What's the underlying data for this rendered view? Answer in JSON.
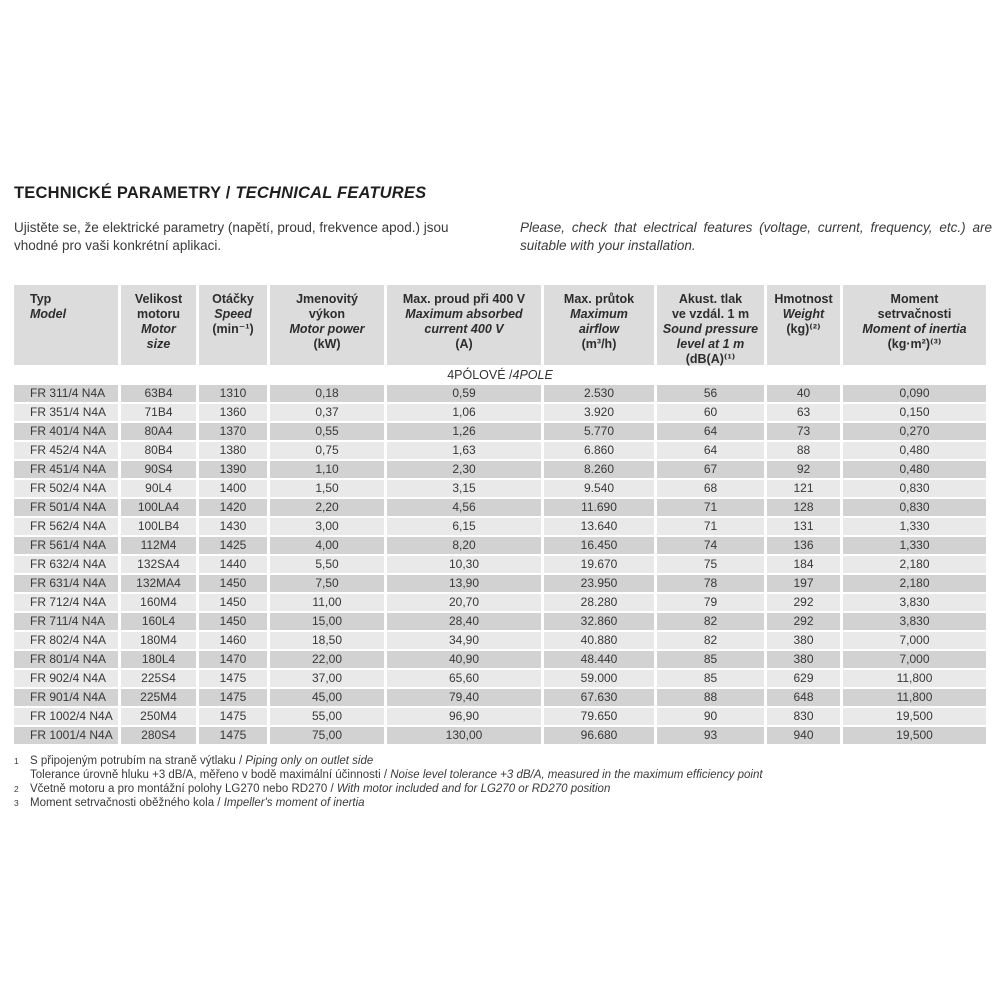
{
  "colors": {
    "header_bg": "#dcdcdc",
    "row_dark": "#d2d2d2",
    "row_light": "#e9e9e9",
    "text": "#3a3a3a"
  },
  "page": {
    "title": {
      "cs": "TECHNICKÉ PARAMETRY",
      "sep": " / ",
      "en": "TECHNICAL FEATURES"
    },
    "intro": {
      "czech": "Ujistěte se, že elektrické parametry (napětí, proud, frekvence apod.) jsou vhodné pro vaši konkrétní aplikaci.",
      "english": "Please, check that electrical features (voltage, current, frequency, etc.) are suitable with your installation."
    }
  },
  "table": {
    "section_label": {
      "cs": "4PÓLOVÉ",
      "sep": " / ",
      "en": "4POLE"
    },
    "columns": [
      {
        "key": "model",
        "align": "left",
        "lines": [
          {
            "t": "Typ",
            "s": "b"
          },
          {
            "t": "Model",
            "s": "bi"
          }
        ]
      },
      {
        "key": "motor-size",
        "lines": [
          {
            "t": "Velikost",
            "s": "b"
          },
          {
            "t": "motoru",
            "s": "b"
          },
          {
            "t": "Motor",
            "s": "bi"
          },
          {
            "t": "size",
            "s": "bi"
          }
        ]
      },
      {
        "key": "speed",
        "lines": [
          {
            "t": "Otáčky",
            "s": "b"
          },
          {
            "t": "Speed",
            "s": "bi"
          },
          {
            "t": "(min⁻¹)",
            "s": "b"
          }
        ]
      },
      {
        "key": "motor-power",
        "lines": [
          {
            "t": "Jmenovitý",
            "s": "b"
          },
          {
            "t": "výkon",
            "s": "b"
          },
          {
            "t": "Motor power",
            "s": "bi"
          },
          {
            "t": "(kW)",
            "s": "b"
          }
        ]
      },
      {
        "key": "max-current",
        "lines": [
          {
            "t": "Max. proud při 400 V",
            "s": "b"
          },
          {
            "t": "Maximum absorbed",
            "s": "bi"
          },
          {
            "t": "current 400 V",
            "s": "bi"
          },
          {
            "t": "(A)",
            "s": "b"
          }
        ]
      },
      {
        "key": "max-airflow",
        "lines": [
          {
            "t": "Max. průtok",
            "s": "b"
          },
          {
            "t": "Maximum",
            "s": "bi"
          },
          {
            "t": "airflow",
            "s": "bi"
          },
          {
            "t": "(m³/h)",
            "s": "b"
          }
        ]
      },
      {
        "key": "sound-pressure",
        "lines": [
          {
            "t": "Akust. tlak",
            "s": "b"
          },
          {
            "t": "ve vzdál. 1 m",
            "s": "b"
          },
          {
            "t": "Sound pressure",
            "s": "bi"
          },
          {
            "t": "level at 1 m",
            "s": "bi"
          },
          {
            "t": "(dB(A)⁽¹⁾",
            "s": "b"
          }
        ]
      },
      {
        "key": "weight",
        "lines": [
          {
            "t": "Hmotnost",
            "s": "b"
          },
          {
            "t": "Weight",
            "s": "bi"
          },
          {
            "t": "(kg)⁽²⁾",
            "s": "b"
          }
        ]
      },
      {
        "key": "moment-of-inertia",
        "lines": [
          {
            "t": "Moment",
            "s": "b"
          },
          {
            "t": "setrvačnosti",
            "s": "b"
          },
          {
            "t": "Moment of inertia",
            "s": "bi"
          },
          {
            "t": "(kg·m²)⁽³⁾",
            "s": "b"
          }
        ]
      }
    ],
    "rows": [
      [
        "FR 311/4 N4A",
        "63B4",
        "1310",
        "0,18",
        "0,59",
        "2.530",
        "56",
        "40",
        "0,090"
      ],
      [
        "FR 351/4 N4A",
        "71B4",
        "1360",
        "0,37",
        "1,06",
        "3.920",
        "60",
        "63",
        "0,150"
      ],
      [
        "FR 401/4 N4A",
        "80A4",
        "1370",
        "0,55",
        "1,26",
        "5.770",
        "64",
        "73",
        "0,270"
      ],
      [
        "FR 452/4 N4A",
        "80B4",
        "1380",
        "0,75",
        "1,63",
        "6.860",
        "64",
        "88",
        "0,480"
      ],
      [
        "FR 451/4 N4A",
        "90S4",
        "1390",
        "1,10",
        "2,30",
        "8.260",
        "67",
        "92",
        "0,480"
      ],
      [
        "FR 502/4 N4A",
        "90L4",
        "1400",
        "1,50",
        "3,15",
        "9.540",
        "68",
        "121",
        "0,830"
      ],
      [
        "FR 501/4 N4A",
        "100LA4",
        "1420",
        "2,20",
        "4,56",
        "11.690",
        "71",
        "128",
        "0,830"
      ],
      [
        "FR 562/4 N4A",
        "100LB4",
        "1430",
        "3,00",
        "6,15",
        "13.640",
        "71",
        "131",
        "1,330"
      ],
      [
        "FR 561/4 N4A",
        "112M4",
        "1425",
        "4,00",
        "8,20",
        "16.450",
        "74",
        "136",
        "1,330"
      ],
      [
        "FR 632/4 N4A",
        "132SA4",
        "1440",
        "5,50",
        "10,30",
        "19.670",
        "75",
        "184",
        "2,180"
      ],
      [
        "FR 631/4 N4A",
        "132MA4",
        "1450",
        "7,50",
        "13,90",
        "23.950",
        "78",
        "197",
        "2,180"
      ],
      [
        "FR 712/4 N4A",
        "160M4",
        "1450",
        "11,00",
        "20,70",
        "28.280",
        "79",
        "292",
        "3,830"
      ],
      [
        "FR 711/4 N4A",
        "160L4",
        "1450",
        "15,00",
        "28,40",
        "32.860",
        "82",
        "292",
        "3,830"
      ],
      [
        "FR 802/4 N4A",
        "180M4",
        "1460",
        "18,50",
        "34,90",
        "40.880",
        "82",
        "380",
        "7,000"
      ],
      [
        "FR 801/4 N4A",
        "180L4",
        "1470",
        "22,00",
        "40,90",
        "48.440",
        "85",
        "380",
        "7,000"
      ],
      [
        "FR 902/4 N4A",
        "225S4",
        "1475",
        "37,00",
        "65,60",
        "59.000",
        "85",
        "629",
        "11,800"
      ],
      [
        "FR 901/4 N4A",
        "225M4",
        "1475",
        "45,00",
        "79,40",
        "67.630",
        "88",
        "648",
        "11,800"
      ],
      [
        "FR 1002/4 N4A",
        "250M4",
        "1475",
        "55,00",
        "96,90",
        "79.650",
        "90",
        "830",
        "19,500"
      ],
      [
        "FR 1001/4 N4A",
        "280S4",
        "1475",
        "75,00",
        "130,00",
        "96.680",
        "93",
        "940",
        "19,500"
      ]
    ]
  },
  "footnotes": [
    {
      "marker": "1",
      "cs": "S připojeným potrubím na straně výtlaku",
      "sep": " / ",
      "en": "Piping only on outlet side"
    },
    {
      "marker": "",
      "cs": "Tolerance úrovně hluku +3 dB/A, měřeno v bodě maximální účinnosti",
      "sep": " / ",
      "en": "Noise level tolerance +3 dB/A, measured in the maximum efficiency point"
    },
    {
      "marker": "2",
      "cs": "Včetně motoru a pro montážní polohy LG270 nebo RD270",
      "sep": " / ",
      "en": "With motor included and for LG270 or RD270 position"
    },
    {
      "marker": "3",
      "cs": "Moment setrvačnosti oběžného kola",
      "sep": " / ",
      "en": "Impeller's moment of inertia"
    }
  ]
}
